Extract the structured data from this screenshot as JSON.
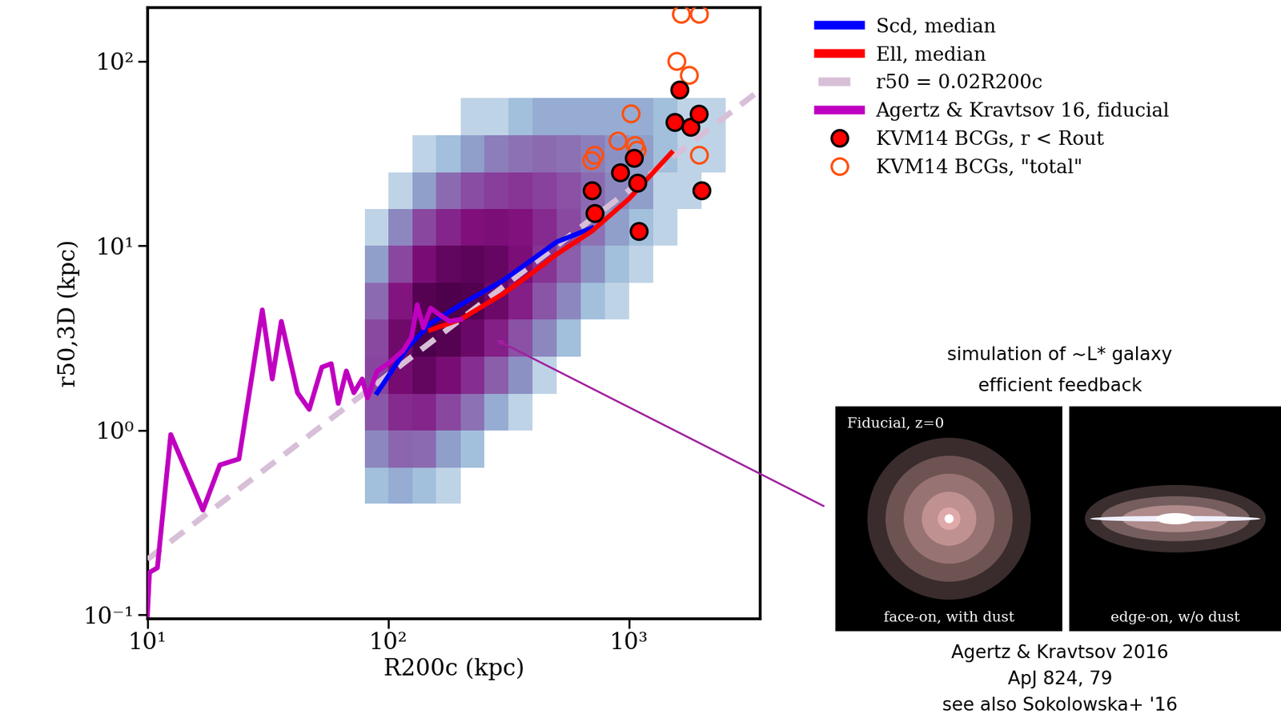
{
  "chart_data": {
    "type": "scatter",
    "x_label": "R200c (kpc)",
    "y_label": "r50,3D (kpc)",
    "log": true,
    "xlim": [
      10,
      3500
    ],
    "ylim": [
      0.095,
      195
    ],
    "xticks": [
      {
        "value": 10,
        "label": "10¹"
      },
      {
        "value": 100,
        "label": "10²"
      },
      {
        "value": 1000,
        "label": "10³"
      }
    ],
    "yticks": [
      {
        "value": 0.1,
        "label": "10⁻¹"
      },
      {
        "value": 1,
        "label": "10⁰"
      },
      {
        "value": 10,
        "label": "10¹"
      },
      {
        "value": 100,
        "label": "10²"
      }
    ],
    "legend": "upper left",
    "heatmap": {
      "x_edges": [
        80,
        100,
        126,
        158,
        200,
        251,
        316,
        398,
        501,
        631,
        794,
        1000,
        1259,
        1585,
        1995,
        2512
      ],
      "y_edges": [
        0.4,
        0.63,
        1,
        1.58,
        2.51,
        3.98,
        6.31,
        10,
        15.8,
        25.1,
        39.8,
        63.1
      ],
      "counts": [
        [
          2,
          6,
          14,
          20,
          18,
          10,
          4,
          1,
          0,
          0,
          0
        ],
        [
          3,
          11,
          30,
          53,
          59,
          42,
          19,
          6,
          1,
          0,
          0
        ],
        [
          2,
          10,
          32,
          71,
          99,
          88,
          51,
          19,
          4,
          1,
          0
        ],
        [
          1,
          4,
          19,
          51,
          88,
          99,
          71,
          32,
          10,
          2,
          0
        ],
        [
          0,
          2,
          9,
          29,
          64,
          89,
          79,
          46,
          17,
          4,
          1
        ],
        [
          0,
          0,
          3,
          13,
          35,
          62,
          69,
          49,
          22,
          7,
          1
        ],
        [
          0,
          0,
          1,
          5,
          16,
          35,
          49,
          44,
          25,
          9,
          2
        ],
        [
          0,
          0,
          0,
          1,
          6,
          15,
          26,
          30,
          21,
          10,
          3
        ],
        [
          0,
          0,
          0,
          0,
          2,
          6,
          13,
          18,
          16,
          9,
          3
        ],
        [
          0,
          0,
          0,
          0,
          0,
          2,
          5,
          9,
          10,
          7,
          3
        ],
        [
          0,
          0,
          0,
          0,
          0,
          1,
          2,
          4,
          6,
          5,
          3
        ],
        [
          0,
          0,
          0,
          0,
          0,
          0,
          1,
          2,
          4,
          4,
          3
        ],
        [
          0,
          0,
          0,
          0,
          0,
          0,
          0,
          1,
          1,
          2,
          2
        ],
        [
          0,
          0,
          0,
          0,
          0,
          0,
          0,
          0,
          1,
          1,
          1
        ],
        [
          0,
          0,
          0,
          0,
          0,
          0,
          0,
          0,
          0,
          1,
          1
        ]
      ]
    },
    "series": [
      {
        "name": "r50 = 0.02R200c",
        "type": "line",
        "color": "#d8bfd8",
        "line_style": "dashed",
        "x": [
          10,
          3500
        ],
        "values": [
          0.2,
          70
        ]
      },
      {
        "name": "Scd, median",
        "type": "line",
        "color": "#0000ff",
        "line_style": "solid",
        "x": [
          90,
          120,
          150,
          200,
          300,
          400,
          500,
          700
        ],
        "values": [
          1.6,
          2.8,
          3.8,
          4.8,
          6.5,
          8.5,
          10.5,
          12.5
        ]
      },
      {
        "name": "Ell, median",
        "type": "line",
        "color": "#ff0000",
        "line_style": "solid",
        "x": [
          150,
          200,
          300,
          400,
          500,
          700,
          1000,
          1500
        ],
        "values": [
          3.5,
          4.0,
          5.5,
          7.2,
          9.0,
          12.0,
          18,
          32
        ]
      },
      {
        "name": "Agertz & Kravtsov 16, fiducial",
        "type": "line",
        "color": "#c000c0",
        "line_style": "solid",
        "x": [
          10,
          10.2,
          11,
          12.5,
          17,
          20,
          24,
          30,
          33,
          36,
          42,
          47,
          53,
          58,
          62,
          67,
          72,
          78,
          82,
          90,
          100,
          115,
          125,
          132,
          140,
          150,
          165,
          180,
          200
        ],
        "values": [
          0.1,
          0.17,
          0.18,
          0.95,
          0.37,
          0.65,
          0.7,
          4.5,
          1.9,
          3.9,
          1.6,
          1.3,
          2.2,
          2.3,
          1.4,
          2.1,
          1.6,
          1.9,
          1.5,
          2.1,
          2.3,
          2.7,
          3.2,
          4.8,
          3.6,
          4.6,
          4.2,
          3.9,
          4.0
        ]
      },
      {
        "name": "KVM14 BCGs, r < Rout",
        "type": "scatter",
        "color": "#ff0000",
        "marker": "circle",
        "x": [
          700,
          720,
          920,
          1050,
          1080,
          1100,
          1550,
          1620,
          1800,
          1950,
          2000
        ],
        "values": [
          20,
          15,
          25,
          30,
          22,
          12,
          47,
          70,
          44,
          52,
          20
        ]
      },
      {
        "name": "KVM14 BCGs, \"total\"",
        "type": "scatter",
        "color": "#ff5010",
        "marker": "open_circle",
        "x": [
          700,
          720,
          900,
          1020,
          1060,
          1080,
          1580,
          1650,
          1780,
          1960,
          1960
        ],
        "values": [
          29,
          31,
          37,
          52,
          35,
          33,
          100,
          180,
          84,
          180,
          31
        ]
      }
    ],
    "annotations": {
      "caption": [
        "simulation of ~L* galaxy",
        "efficient feedback"
      ],
      "panel_title": "Fiducial, z=0",
      "panel_labels": [
        "face-on, with dust",
        "edge-on, w/o dust"
      ],
      "reference": [
        "Agertz & Kravtsov 2016",
        "ApJ 824, 79",
        "see also Sokolowska+ '16"
      ]
    }
  }
}
